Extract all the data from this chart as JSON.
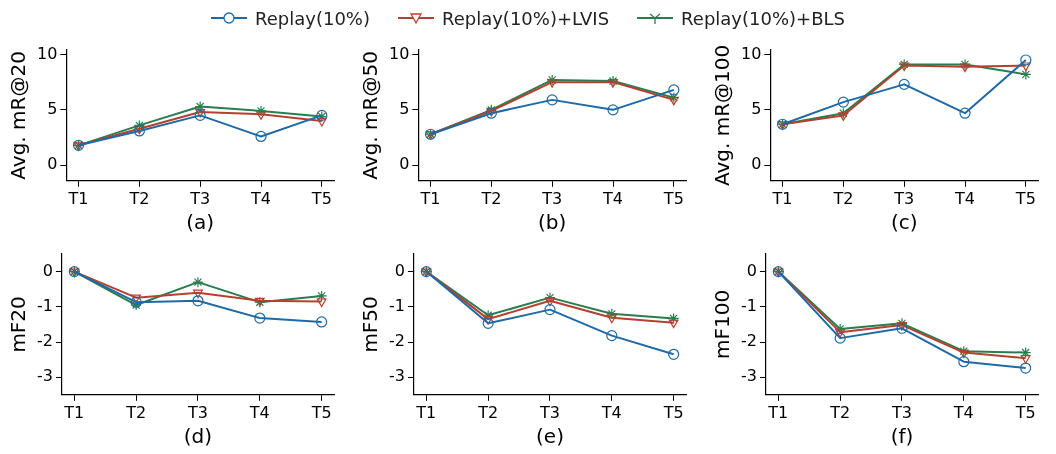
{
  "chart_data": [
    {
      "type": "line",
      "xlabel": "(a)",
      "ylabel": "Avg. mR@20",
      "categories": [
        "T1",
        "T2",
        "T3",
        "T4",
        "T5"
      ],
      "ylim": [
        -1.4,
        10.4
      ],
      "yticks": [
        0,
        5,
        10
      ],
      "grid": false,
      "legend": "top",
      "line_style": "solid",
      "series": [
        {
          "name": "Replay(10%)",
          "color": "#1f6aa5",
          "marker": "circle",
          "values": [
            1.8,
            3.1,
            4.5,
            2.6,
            4.5
          ]
        },
        {
          "name": "Replay(10%)+LVIS",
          "color": "#b5402f",
          "marker": "triangle",
          "values": [
            1.8,
            3.3,
            4.8,
            4.6,
            4.0
          ]
        },
        {
          "name": "Replay(10%)+BLS",
          "color": "#2a7d4f",
          "marker": "cross",
          "values": [
            1.8,
            3.6,
            5.3,
            4.9,
            4.4
          ]
        }
      ]
    },
    {
      "type": "line",
      "xlabel": "(b)",
      "ylabel": "Avg. mR@50",
      "categories": [
        "T1",
        "T2",
        "T3",
        "T4",
        "T5"
      ],
      "ylim": [
        -1.4,
        10.4
      ],
      "yticks": [
        0,
        5,
        10
      ],
      "grid": false,
      "line_style": "solid",
      "series": [
        {
          "color": "#1f6aa5",
          "marker": "circle",
          "values": [
            2.8,
            4.7,
            5.9,
            5.0,
            6.8
          ]
        },
        {
          "color": "#b5402f",
          "marker": "triangle",
          "values": [
            2.8,
            4.9,
            7.5,
            7.5,
            5.9
          ]
        },
        {
          "color": "#2a7d4f",
          "marker": "cross",
          "values": [
            2.8,
            5.0,
            7.7,
            7.6,
            6.1
          ]
        }
      ]
    },
    {
      "type": "line",
      "xlabel": "(c)",
      "ylabel": "Avg. mR@100",
      "categories": [
        "T1",
        "T2",
        "T3",
        "T4",
        "T5"
      ],
      "ylim": [
        -1.4,
        10.4
      ],
      "yticks": [
        0,
        5,
        10
      ],
      "grid": false,
      "line_style": "solid",
      "series": [
        {
          "color": "#1f6aa5",
          "marker": "circle",
          "values": [
            3.7,
            5.7,
            7.3,
            4.7,
            9.5
          ]
        },
        {
          "color": "#b5402f",
          "marker": "triangle",
          "values": [
            3.7,
            4.5,
            9.0,
            8.9,
            9.0
          ]
        },
        {
          "color": "#2a7d4f",
          "marker": "cross",
          "values": [
            3.7,
            4.7,
            9.1,
            9.1,
            8.2
          ]
        }
      ]
    },
    {
      "type": "line",
      "xlabel": "(d)",
      "ylabel": "mF20",
      "categories": [
        "T1",
        "T2",
        "T3",
        "T4",
        "T5"
      ],
      "ylim": [
        -3.5,
        0.5
      ],
      "yticks": [
        0,
        -1,
        -2,
        -3
      ],
      "grid": false,
      "line_style": "solid",
      "series": [
        {
          "color": "#1f6aa5",
          "marker": "circle",
          "values": [
            0,
            -0.87,
            -0.83,
            -1.32,
            -1.43
          ]
        },
        {
          "color": "#b5402f",
          "marker": "triangle",
          "values": [
            0,
            -0.74,
            -0.6,
            -0.83,
            -0.85
          ]
        },
        {
          "color": "#2a7d4f",
          "marker": "cross",
          "values": [
            0,
            -0.95,
            -0.3,
            -0.87,
            -0.69
          ]
        }
      ]
    },
    {
      "type": "line",
      "xlabel": "(e)",
      "ylabel": "mF50",
      "categories": [
        "T1",
        "T2",
        "T3",
        "T4",
        "T5"
      ],
      "ylim": [
        -3.5,
        0.5
      ],
      "yticks": [
        0,
        -1,
        -2,
        -3
      ],
      "grid": false,
      "line_style": "solid",
      "series": [
        {
          "color": "#1f6aa5",
          "marker": "circle",
          "values": [
            0,
            -1.47,
            -1.08,
            -1.82,
            -2.35
          ]
        },
        {
          "color": "#b5402f",
          "marker": "triangle",
          "values": [
            0,
            -1.35,
            -0.83,
            -1.31,
            -1.45
          ]
        },
        {
          "color": "#2a7d4f",
          "marker": "cross",
          "values": [
            0,
            -1.24,
            -0.74,
            -1.2,
            -1.33
          ]
        }
      ]
    },
    {
      "type": "line",
      "xlabel": "(f)",
      "ylabel": "mF100",
      "categories": [
        "T1",
        "T2",
        "T3",
        "T4",
        "T5"
      ],
      "ylim": [
        -3.5,
        0.5
      ],
      "yticks": [
        0,
        -1,
        -2,
        -3
      ],
      "grid": false,
      "line_style": "solid",
      "series": [
        {
          "color": "#1f6aa5",
          "marker": "circle",
          "values": [
            0,
            -1.89,
            -1.61,
            -2.56,
            -2.74
          ]
        },
        {
          "color": "#b5402f",
          "marker": "triangle",
          "values": [
            0,
            -1.72,
            -1.52,
            -2.3,
            -2.46
          ]
        },
        {
          "color": "#2a7d4f",
          "marker": "cross",
          "values": [
            0,
            -1.63,
            -1.47,
            -2.26,
            -2.3
          ]
        }
      ]
    }
  ]
}
